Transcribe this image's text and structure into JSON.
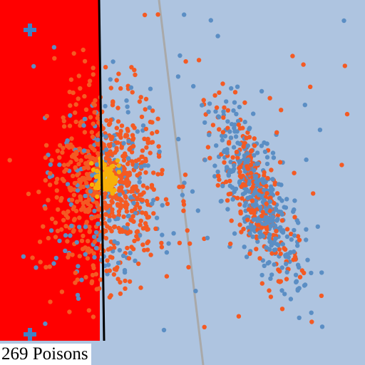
{
  "hud": {
    "poison_count": "269",
    "poison_label": "Poisons"
  },
  "colors": {
    "field": "#aec4e0",
    "zone": "#ff0000",
    "boundary": "#000000",
    "line": "#a9a9a9",
    "dot_blue": "#5b8ec4",
    "dot_orange": "#f45a23",
    "dot_yellow": "#f7b10a",
    "marker": "#3f82c6"
  },
  "icons": {
    "markers": [
      "plus-marker-icon",
      "plus-marker-icon"
    ]
  }
}
